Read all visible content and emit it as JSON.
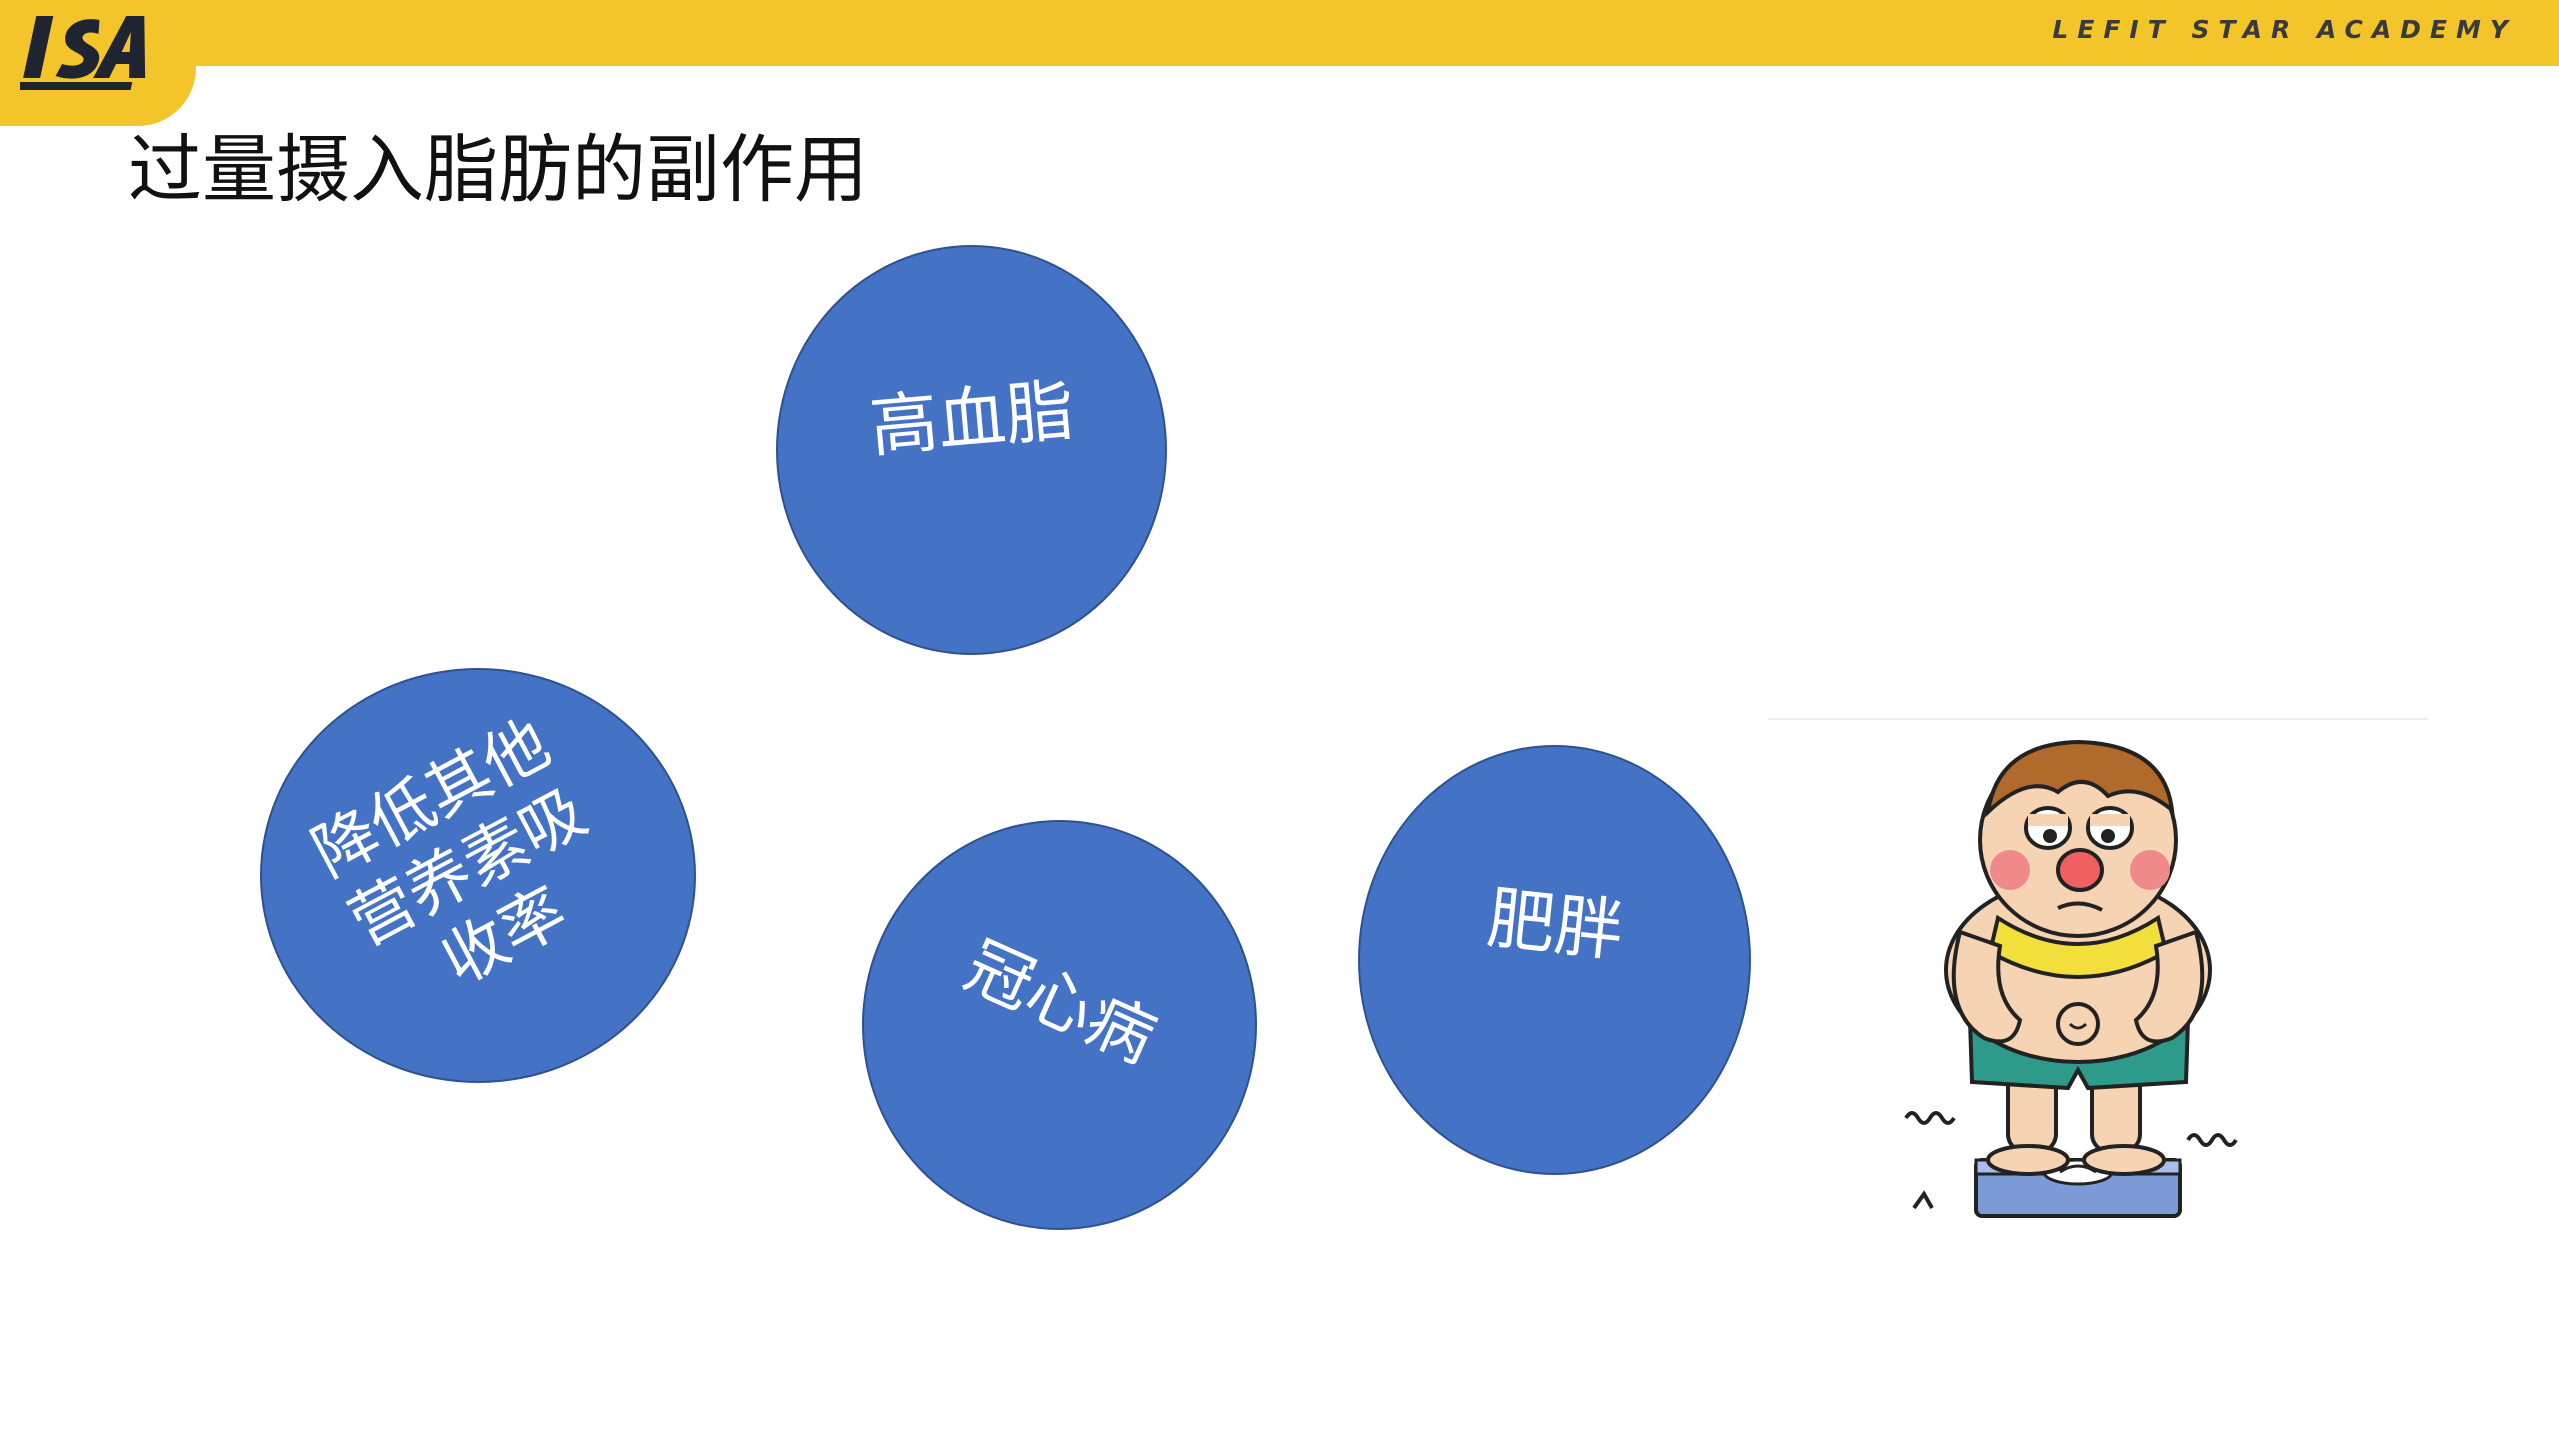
{
  "header": {
    "logo_text": "LSA",
    "brand_name": "LEFIT STAR ACADEMY"
  },
  "slide": {
    "title": "过量摄入脂肪的副作用"
  },
  "bubbles": [
    {
      "label": "高血脂"
    },
    {
      "label": "降低其他\n营养素吸\n收率"
    },
    {
      "label": "冠心病"
    },
    {
      "label": "肥胖"
    }
  ],
  "colors": {
    "header_yellow": "#f4c42b",
    "bubble_fill": "#4472c4",
    "bubble_border": "#2f528f",
    "bubble_text": "#ffffff",
    "title_text": "#111111"
  },
  "illustration": {
    "icon": "overweight-man-on-scale-icon"
  }
}
